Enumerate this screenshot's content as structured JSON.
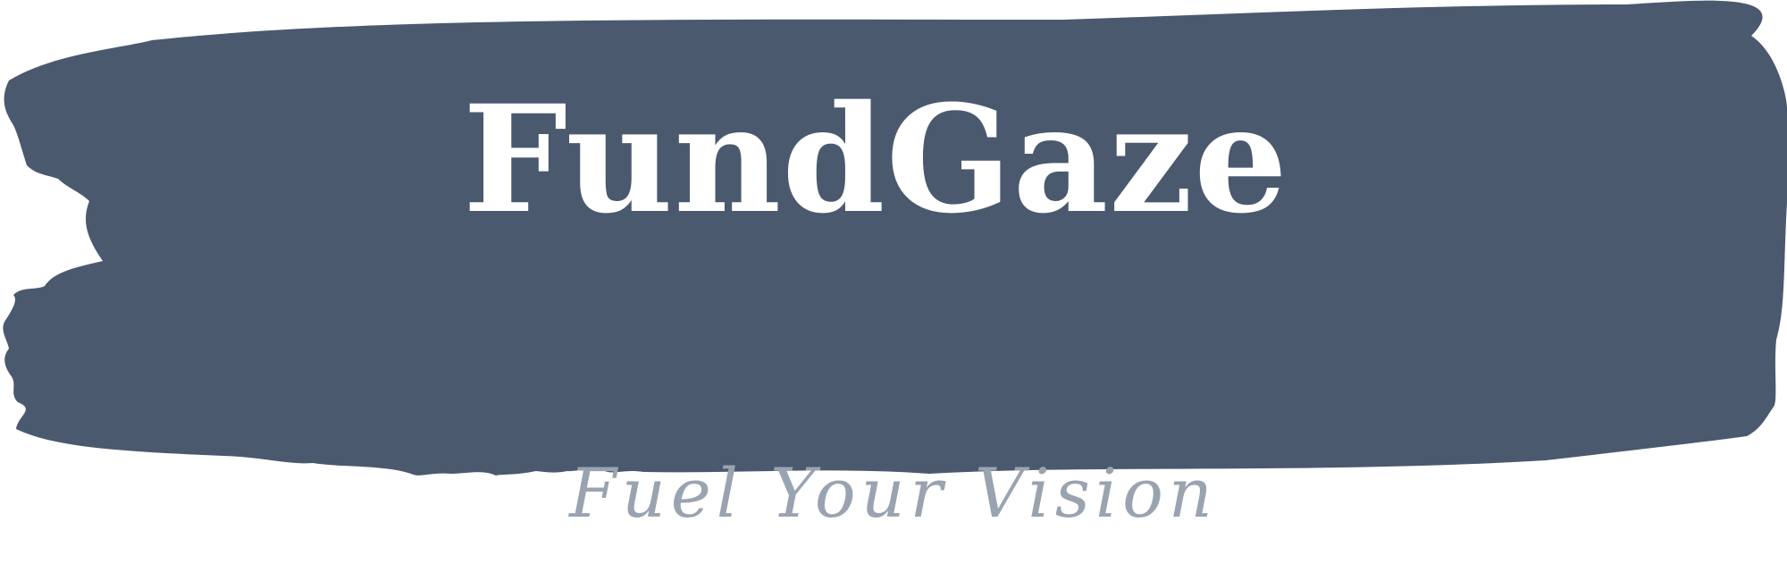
{
  "logo": {
    "brand_name": "FundGaze",
    "tagline": "Fuel Your Vision"
  },
  "colors": {
    "brush_fill": "#4a596e",
    "brand_text": "#ffffff",
    "tagline_text": "#9aa3b0",
    "background": "#ffffff"
  }
}
